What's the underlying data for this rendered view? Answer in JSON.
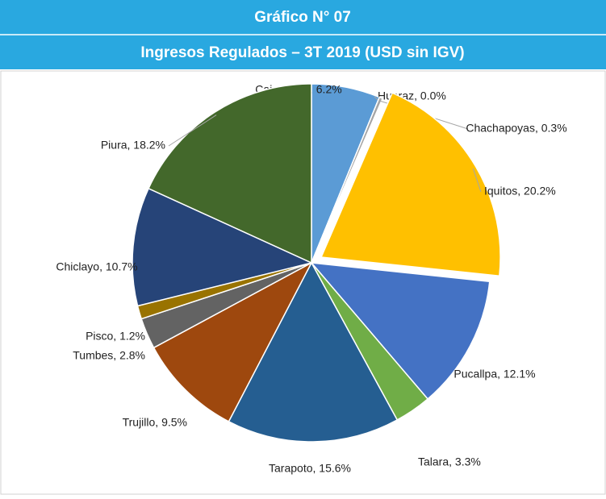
{
  "chart_data": {
    "type": "pie",
    "title": "Gráfico N° 07",
    "subtitle": "Ingresos Regulados – 3T 2019 (USD sin IGV)",
    "values": [
      6.2,
      0.0,
      0.3,
      20.2,
      12.1,
      3.3,
      15.6,
      9.5,
      2.8,
      1.2,
      10.7,
      18.2
    ],
    "value_labels": [
      "Cajamarca, 6.2%",
      "Huaraz, 0.0%",
      "Chachapoyas, 0.3%",
      "Iquitos, 20.2%",
      "Pucallpa, 12.1%",
      "Talara, 3.3%",
      "Tarapoto, 15.6%",
      "Trujillo, 9.5%",
      "Tumbes, 2.8%",
      "Pisco, 1.2%",
      "Chiclayo, 10.7%",
      "Piura, 18.2%"
    ],
    "colors": [
      "#5b9bd5",
      "#ed7d31",
      "#a5a5a5",
      "#ffc000",
      "#4472c4",
      "#70ad47",
      "#255e91",
      "#9e480e",
      "#636363",
      "#997300",
      "#264478",
      "#43682b"
    ],
    "exploded": [
      3
    ]
  }
}
